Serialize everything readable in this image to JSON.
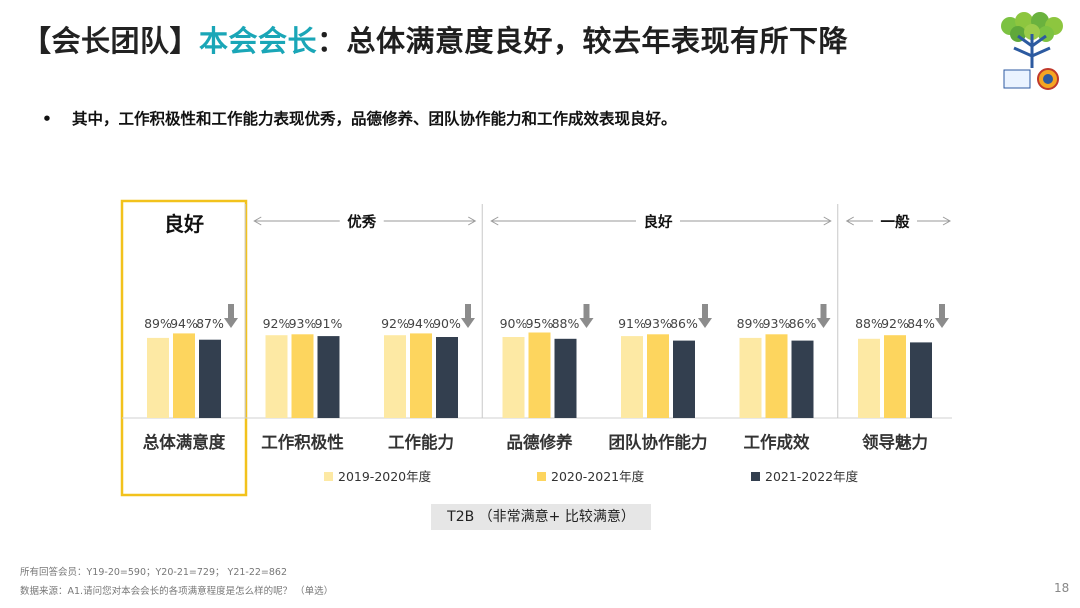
{
  "title": {
    "prefix": "【会长团队】",
    "accent": "本会会长",
    "rest": "：总体满意度良好，较去年表现有所下降"
  },
  "bullet": {
    "symbol": "•",
    "text": "其中，工作积极性和工作能力表现优秀，品德修养、团队协作能力和工作成效表现良好。"
  },
  "chart_data": {
    "type": "bar",
    "title": "",
    "categories": [
      "总体满意度",
      "工作积极性",
      "工作能力",
      "品德修养",
      "团队协作能力",
      "工作成效",
      "领导魅力"
    ],
    "series": [
      {
        "name": "2019-2020年度",
        "values": [
          89,
          92,
          92,
          90,
          91,
          89,
          88
        ],
        "color": "#fde9a4"
      },
      {
        "name": "2020-2021年度",
        "values": [
          94,
          93,
          94,
          95,
          93,
          93,
          92
        ],
        "color": "#fdd55e"
      },
      {
        "name": "2021-2022年度",
        "values": [
          87,
          91,
          90,
          88,
          86,
          86,
          84
        ],
        "color": "#333f4f"
      }
    ],
    "value_suffix": "%",
    "ylim": [
      0,
      100
    ],
    "down_arrow_categories": [
      "总体满意度",
      "工作能力",
      "品德修养",
      "团队协作能力",
      "工作成效",
      "领导魅力"
    ],
    "group_labels": [
      {
        "label": "良好",
        "categories": [
          "总体满意度"
        ],
        "highlight": true
      },
      {
        "label": "优秀",
        "categories": [
          "工作积极性",
          "工作能力"
        ]
      },
      {
        "label": "良好",
        "categories": [
          "品德修养",
          "团队协作能力",
          "工作成效"
        ]
      },
      {
        "label": "一般",
        "categories": [
          "领导魅力"
        ]
      }
    ]
  },
  "t2b_label": "T2B （非常满意+ 比较满意）",
  "footnotes": {
    "sample": "所有回答会员：Y19-20=590；Y20-21=729；  Y21-22=862",
    "source": "数据来源：A1.请问您对本会会长的各项满意程度是怎么样的呢？ （单选）"
  },
  "page_number": "18",
  "colors": {
    "accent": "#1aa6b7",
    "highlight_border": "#f2c21c",
    "arrow": "#8c8c8c",
    "divider": "#c8c8c8"
  }
}
